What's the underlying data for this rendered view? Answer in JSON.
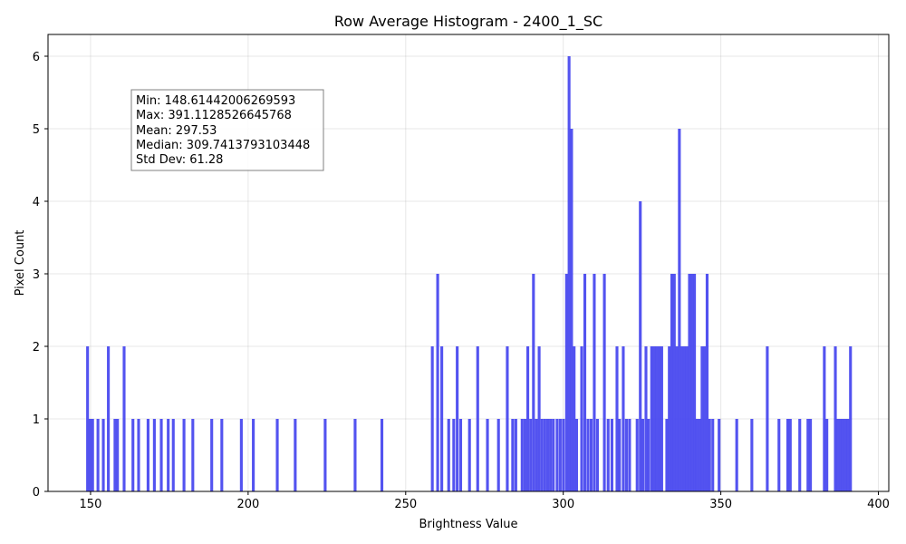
{
  "chart_data": {
    "type": "bar",
    "title": "Row Average Histogram - 2400_1_SC",
    "xlabel": "Brightness Value",
    "ylabel": "Pixel Count",
    "xlim": [
      136.5,
      403.3
    ],
    "ylim": [
      0,
      6.3
    ],
    "x_ticks": [
      150,
      200,
      250,
      300,
      350,
      400
    ],
    "y_ticks": [
      0,
      1,
      2,
      3,
      4,
      5,
      6
    ],
    "grid": true,
    "bar_color": "#4a4aef",
    "bin_width": 0.81,
    "stats_lines": [
      "Min: 148.61442006269593",
      "Max: 391.1128526645768",
      "Mean: 297.53",
      "Median: 309.7413793103448",
      "Std Dev: 61.28"
    ],
    "bars": [
      [
        148.6,
        2
      ],
      [
        149.4,
        1
      ],
      [
        150.2,
        1
      ],
      [
        151.9,
        1
      ],
      [
        153.6,
        1
      ],
      [
        155.2,
        2
      ],
      [
        157.3,
        1
      ],
      [
        158.1,
        1
      ],
      [
        160.2,
        2
      ],
      [
        163.0,
        1
      ],
      [
        164.8,
        1
      ],
      [
        167.8,
        1
      ],
      [
        169.8,
        1
      ],
      [
        172.0,
        1
      ],
      [
        174.2,
        1
      ],
      [
        175.8,
        1
      ],
      [
        179.2,
        1
      ],
      [
        182.0,
        1
      ],
      [
        188.0,
        1
      ],
      [
        191.2,
        1
      ],
      [
        197.4,
        1
      ],
      [
        201.2,
        1
      ],
      [
        208.8,
        1
      ],
      [
        214.5,
        1
      ],
      [
        224.0,
        1
      ],
      [
        233.5,
        1
      ],
      [
        242.0,
        1
      ],
      [
        258.0,
        2
      ],
      [
        259.7,
        3
      ],
      [
        261.0,
        2
      ],
      [
        263.2,
        1
      ],
      [
        264.8,
        1
      ],
      [
        265.9,
        2
      ],
      [
        267.0,
        1
      ],
      [
        269.8,
        1
      ],
      [
        272.4,
        2
      ],
      [
        275.5,
        1
      ],
      [
        279.0,
        1
      ],
      [
        281.8,
        2
      ],
      [
        283.5,
        1
      ],
      [
        284.5,
        1
      ],
      [
        286.5,
        1
      ],
      [
        287.4,
        1
      ],
      [
        288.3,
        2
      ],
      [
        289.2,
        1
      ],
      [
        290.1,
        3
      ],
      [
        291.0,
        1
      ],
      [
        291.9,
        2
      ],
      [
        292.8,
        1
      ],
      [
        293.7,
        1
      ],
      [
        294.6,
        1
      ],
      [
        295.5,
        1
      ],
      [
        296.4,
        1
      ],
      [
        297.6,
        1
      ],
      [
        298.6,
        1
      ],
      [
        299.6,
        1
      ],
      [
        300.6,
        3
      ],
      [
        301.4,
        6
      ],
      [
        302.2,
        5
      ],
      [
        303.0,
        2
      ],
      [
        303.8,
        1
      ],
      [
        305.4,
        2
      ],
      [
        306.4,
        3
      ],
      [
        307.4,
        1
      ],
      [
        308.4,
        1
      ],
      [
        309.4,
        3
      ],
      [
        310.4,
        1
      ],
      [
        312.6,
        3
      ],
      [
        313.8,
        1
      ],
      [
        315.0,
        1
      ],
      [
        316.6,
        2
      ],
      [
        317.4,
        1
      ],
      [
        318.6,
        2
      ],
      [
        319.6,
        1
      ],
      [
        320.6,
        1
      ],
      [
        323.0,
        1
      ],
      [
        324.0,
        4
      ],
      [
        324.8,
        1
      ],
      [
        325.8,
        2
      ],
      [
        326.6,
        1
      ],
      [
        327.6,
        2
      ],
      [
        328.4,
        2
      ],
      [
        329.2,
        2
      ],
      [
        330.0,
        2
      ],
      [
        330.8,
        2
      ],
      [
        332.4,
        1
      ],
      [
        333.2,
        2
      ],
      [
        334.0,
        3
      ],
      [
        334.8,
        3
      ],
      [
        335.6,
        2
      ],
      [
        336.4,
        5
      ],
      [
        337.2,
        2
      ],
      [
        338.0,
        2
      ],
      [
        338.8,
        2
      ],
      [
        339.6,
        3
      ],
      [
        340.4,
        3
      ],
      [
        341.2,
        3
      ],
      [
        342.0,
        1
      ],
      [
        342.8,
        1
      ],
      [
        343.6,
        2
      ],
      [
        344.4,
        2
      ],
      [
        345.2,
        3
      ],
      [
        346.0,
        1
      ],
      [
        347.0,
        1
      ],
      [
        349.0,
        1
      ],
      [
        354.6,
        1
      ],
      [
        359.4,
        1
      ],
      [
        364.3,
        2
      ],
      [
        368.0,
        1
      ],
      [
        370.8,
        1
      ],
      [
        371.6,
        1
      ],
      [
        374.6,
        1
      ],
      [
        377.2,
        1
      ],
      [
        378.0,
        1
      ],
      [
        382.4,
        2
      ],
      [
        383.2,
        1
      ],
      [
        385.9,
        2
      ],
      [
        386.7,
        1
      ],
      [
        387.5,
        1
      ],
      [
        388.3,
        1
      ],
      [
        389.1,
        1
      ],
      [
        389.9,
        1
      ],
      [
        390.7,
        2
      ]
    ]
  }
}
